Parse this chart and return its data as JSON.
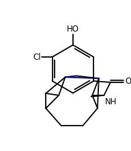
{
  "background_color": "#ffffff",
  "line_color": "#000000",
  "ada_color": "#00008B",
  "text_color": "#000000",
  "figsize": [
    1.92,
    2.2
  ],
  "dpi": 100,
  "HO_label": "HO",
  "Cl_label": "Cl",
  "O_label": "O",
  "NH_label": "NH",
  "lw": 1.3
}
